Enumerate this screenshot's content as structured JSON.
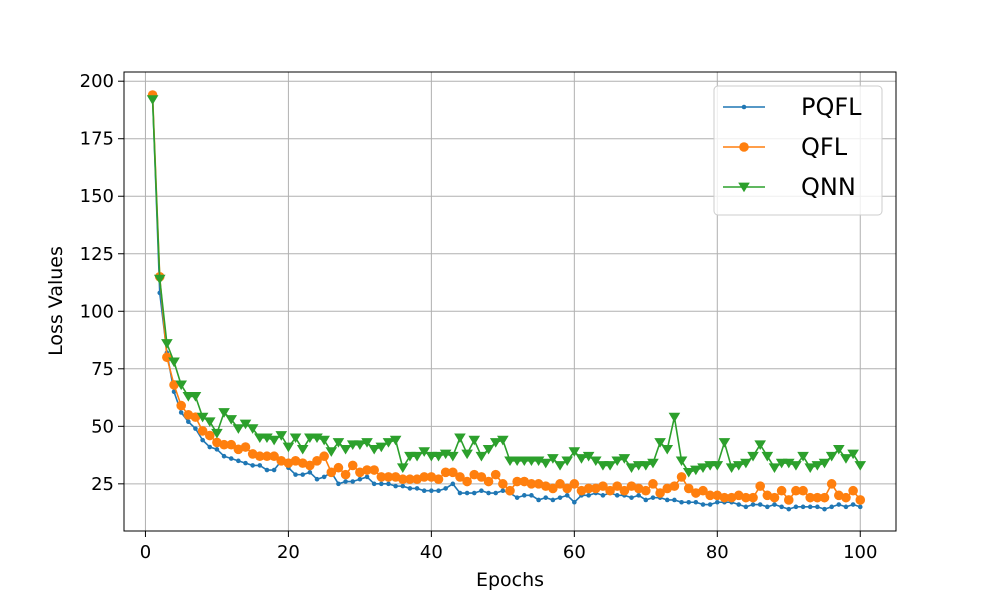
{
  "chart_data": {
    "type": "line",
    "xlabel": "Epochs",
    "ylabel": "Loss Values",
    "xlim": [
      -3,
      105
    ],
    "ylim": [
      4.5,
      204
    ],
    "xticks": [
      0,
      20,
      40,
      60,
      80,
      100
    ],
    "yticks": [
      25,
      50,
      75,
      100,
      125,
      150,
      175,
      200
    ],
    "grid": true,
    "legend_position": "top-right",
    "series": [
      {
        "name": "PQFL",
        "color": "#1f77b4",
        "marker": "dot",
        "x": [
          1,
          2,
          3,
          4,
          5,
          6,
          7,
          8,
          9,
          10,
          11,
          12,
          13,
          14,
          15,
          16,
          17,
          18,
          19,
          20,
          21,
          22,
          23,
          24,
          25,
          26,
          27,
          28,
          29,
          30,
          31,
          32,
          33,
          34,
          35,
          36,
          37,
          38,
          39,
          40,
          41,
          42,
          43,
          44,
          45,
          46,
          47,
          48,
          49,
          50,
          51,
          52,
          53,
          54,
          55,
          56,
          57,
          58,
          59,
          60,
          61,
          62,
          63,
          64,
          65,
          66,
          67,
          68,
          69,
          70,
          71,
          72,
          73,
          74,
          75,
          76,
          77,
          78,
          79,
          80,
          81,
          82,
          83,
          84,
          85,
          86,
          87,
          88,
          89,
          90,
          91,
          92,
          93,
          94,
          95,
          96,
          97,
          98,
          99,
          100
        ],
        "values": [
          193,
          108,
          82,
          65,
          56,
          52,
          49,
          44,
          41,
          40,
          37,
          36,
          35,
          34,
          33,
          33,
          31,
          31,
          35,
          32,
          29,
          29,
          30,
          27,
          28,
          30,
          25,
          26,
          26,
          27,
          28,
          25,
          25,
          25,
          24,
          24,
          23,
          23,
          22,
          22,
          22,
          23,
          25,
          21,
          21,
          21,
          22,
          21,
          21,
          22,
          21,
          19,
          20,
          20,
          18,
          19,
          18,
          19,
          20,
          17,
          20,
          20,
          21,
          20,
          21,
          20,
          20,
          19,
          20,
          18,
          19,
          19,
          18,
          18,
          17,
          17,
          17,
          16,
          16,
          17,
          17,
          17,
          16,
          15,
          16,
          16,
          15,
          16,
          15,
          14,
          15,
          15,
          15,
          15,
          14,
          15,
          16,
          15,
          16,
          15
        ]
      },
      {
        "name": "QFL",
        "color": "#ff7f0e",
        "marker": "circle",
        "x": [
          1,
          2,
          3,
          4,
          5,
          6,
          7,
          8,
          9,
          10,
          11,
          12,
          13,
          14,
          15,
          16,
          17,
          18,
          19,
          20,
          21,
          22,
          23,
          24,
          25,
          26,
          27,
          28,
          29,
          30,
          31,
          32,
          33,
          34,
          35,
          36,
          37,
          38,
          39,
          40,
          41,
          42,
          43,
          44,
          45,
          46,
          47,
          48,
          49,
          50,
          51,
          52,
          53,
          54,
          55,
          56,
          57,
          58,
          59,
          60,
          61,
          62,
          63,
          64,
          65,
          66,
          67,
          68,
          69,
          70,
          71,
          72,
          73,
          74,
          75,
          76,
          77,
          78,
          79,
          80,
          81,
          82,
          83,
          84,
          85,
          86,
          87,
          88,
          89,
          90,
          91,
          92,
          93,
          94,
          95,
          96,
          97,
          98,
          99,
          100
        ],
        "values": [
          194,
          115,
          80,
          68,
          59,
          55,
          54,
          48,
          46,
          43,
          42,
          42,
          40,
          41,
          38,
          37,
          37,
          37,
          35,
          34,
          35,
          34,
          33,
          35,
          37,
          30,
          32,
          29,
          33,
          30,
          31,
          31,
          28,
          28,
          28,
          27,
          27,
          27,
          28,
          28,
          27,
          30,
          30,
          28,
          26,
          29,
          28,
          26,
          29,
          25,
          22,
          26,
          26,
          25,
          25,
          24,
          23,
          25,
          23,
          25,
          22,
          23,
          23,
          24,
          22,
          24,
          22,
          24,
          23,
          22,
          25,
          21,
          23,
          24,
          28,
          23,
          21,
          22,
          20,
          20,
          19,
          19,
          20,
          19,
          19,
          24,
          20,
          19,
          22,
          18,
          22,
          22,
          19,
          19,
          19,
          25,
          20,
          19,
          22,
          18
        ]
      },
      {
        "name": "QNN",
        "color": "#2ca02c",
        "marker": "triangle-down",
        "x": [
          1,
          2,
          3,
          4,
          5,
          6,
          7,
          8,
          9,
          10,
          11,
          12,
          13,
          14,
          15,
          16,
          17,
          18,
          19,
          20,
          21,
          22,
          23,
          24,
          25,
          26,
          27,
          28,
          29,
          30,
          31,
          32,
          33,
          34,
          35,
          36,
          37,
          38,
          39,
          40,
          41,
          42,
          43,
          44,
          45,
          46,
          47,
          48,
          49,
          50,
          51,
          52,
          53,
          54,
          55,
          56,
          57,
          58,
          59,
          60,
          61,
          62,
          63,
          64,
          65,
          66,
          67,
          68,
          69,
          70,
          71,
          72,
          73,
          74,
          75,
          76,
          77,
          78,
          79,
          80,
          81,
          82,
          83,
          84,
          85,
          86,
          87,
          88,
          89,
          90,
          91,
          92,
          93,
          94,
          95,
          96,
          97,
          98,
          99,
          100
        ],
        "values": [
          192,
          114,
          86,
          78,
          68,
          63,
          63,
          54,
          52,
          47,
          56,
          53,
          49,
          51,
          49,
          45,
          45,
          44,
          46,
          41,
          45,
          40,
          45,
          45,
          44,
          39,
          43,
          40,
          42,
          42,
          43,
          40,
          41,
          43,
          44,
          32,
          37,
          37,
          39,
          37,
          37,
          38,
          37,
          45,
          38,
          44,
          37,
          40,
          43,
          44,
          35,
          35,
          35,
          35,
          35,
          34,
          36,
          33,
          35,
          39,
          36,
          37,
          35,
          33,
          33,
          35,
          36,
          32,
          33,
          33,
          34,
          43,
          40,
          54,
          35,
          30,
          31,
          32,
          33,
          33,
          43,
          32,
          33,
          34,
          37,
          42,
          37,
          32,
          34,
          34,
          33,
          37,
          32,
          33,
          34,
          37,
          40,
          36,
          38,
          33
        ]
      }
    ]
  }
}
